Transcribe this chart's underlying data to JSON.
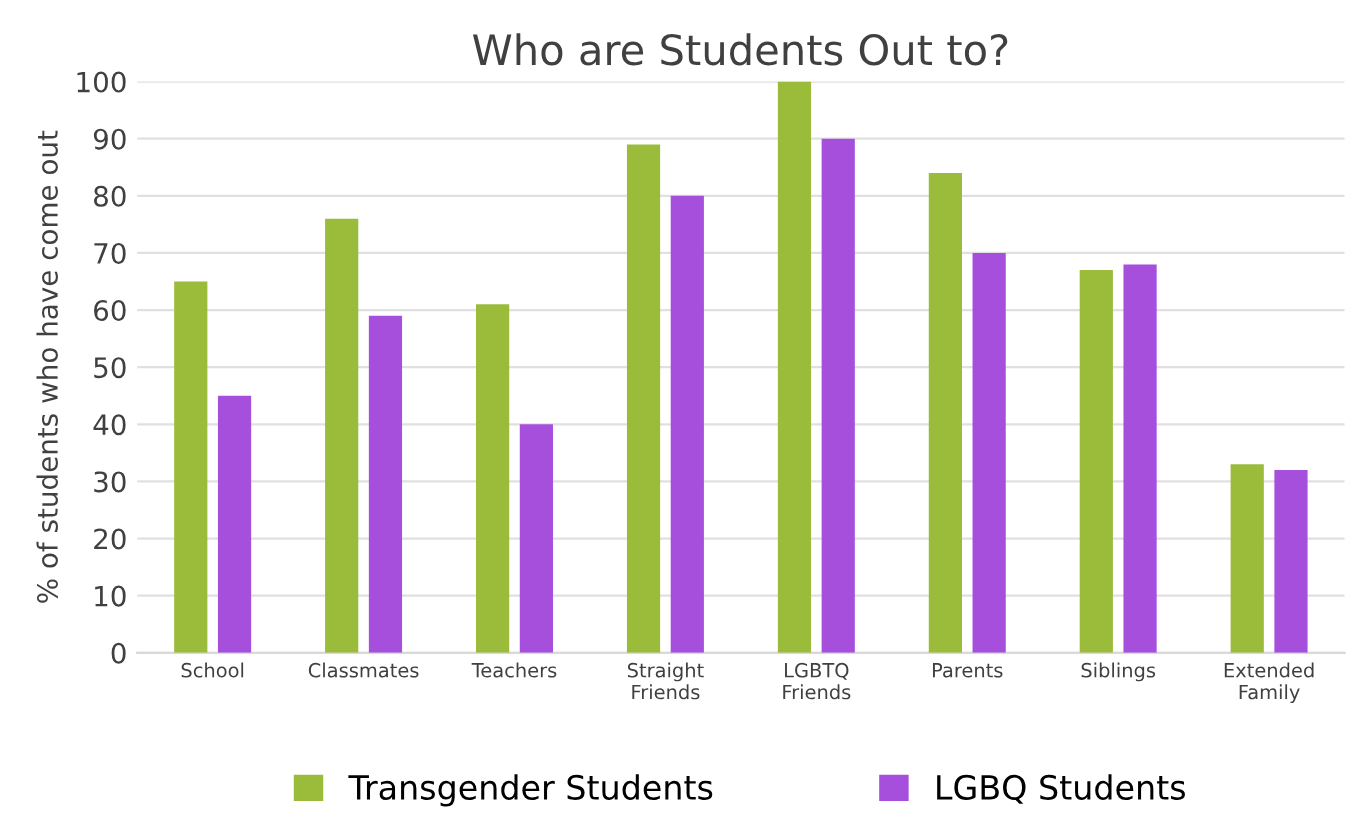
{
  "chart_data": {
    "type": "bar",
    "title": "Who are Students Out to?",
    "ylabel": "% of students who have come out",
    "categories": [
      "School",
      "Classmates",
      "Teachers",
      "Straight\nFriends",
      "LGBTQ\nFriends",
      "Parents",
      "Siblings",
      "Extended\nFamily"
    ],
    "series": [
      {
        "name": "Transgender Students",
        "color": "#9bbb3b",
        "values": [
          65,
          76,
          61,
          89,
          100,
          84,
          67,
          33
        ]
      },
      {
        "name": "LGBQ Students",
        "color": "#a64fdc",
        "values": [
          45,
          59,
          40,
          80,
          90,
          70,
          68,
          32
        ]
      }
    ],
    "ylim": [
      0,
      100
    ],
    "yticks": [
      0,
      10,
      20,
      30,
      40,
      50,
      60,
      70,
      80,
      90,
      100
    ],
    "grid": "y",
    "legend": "bottom"
  }
}
